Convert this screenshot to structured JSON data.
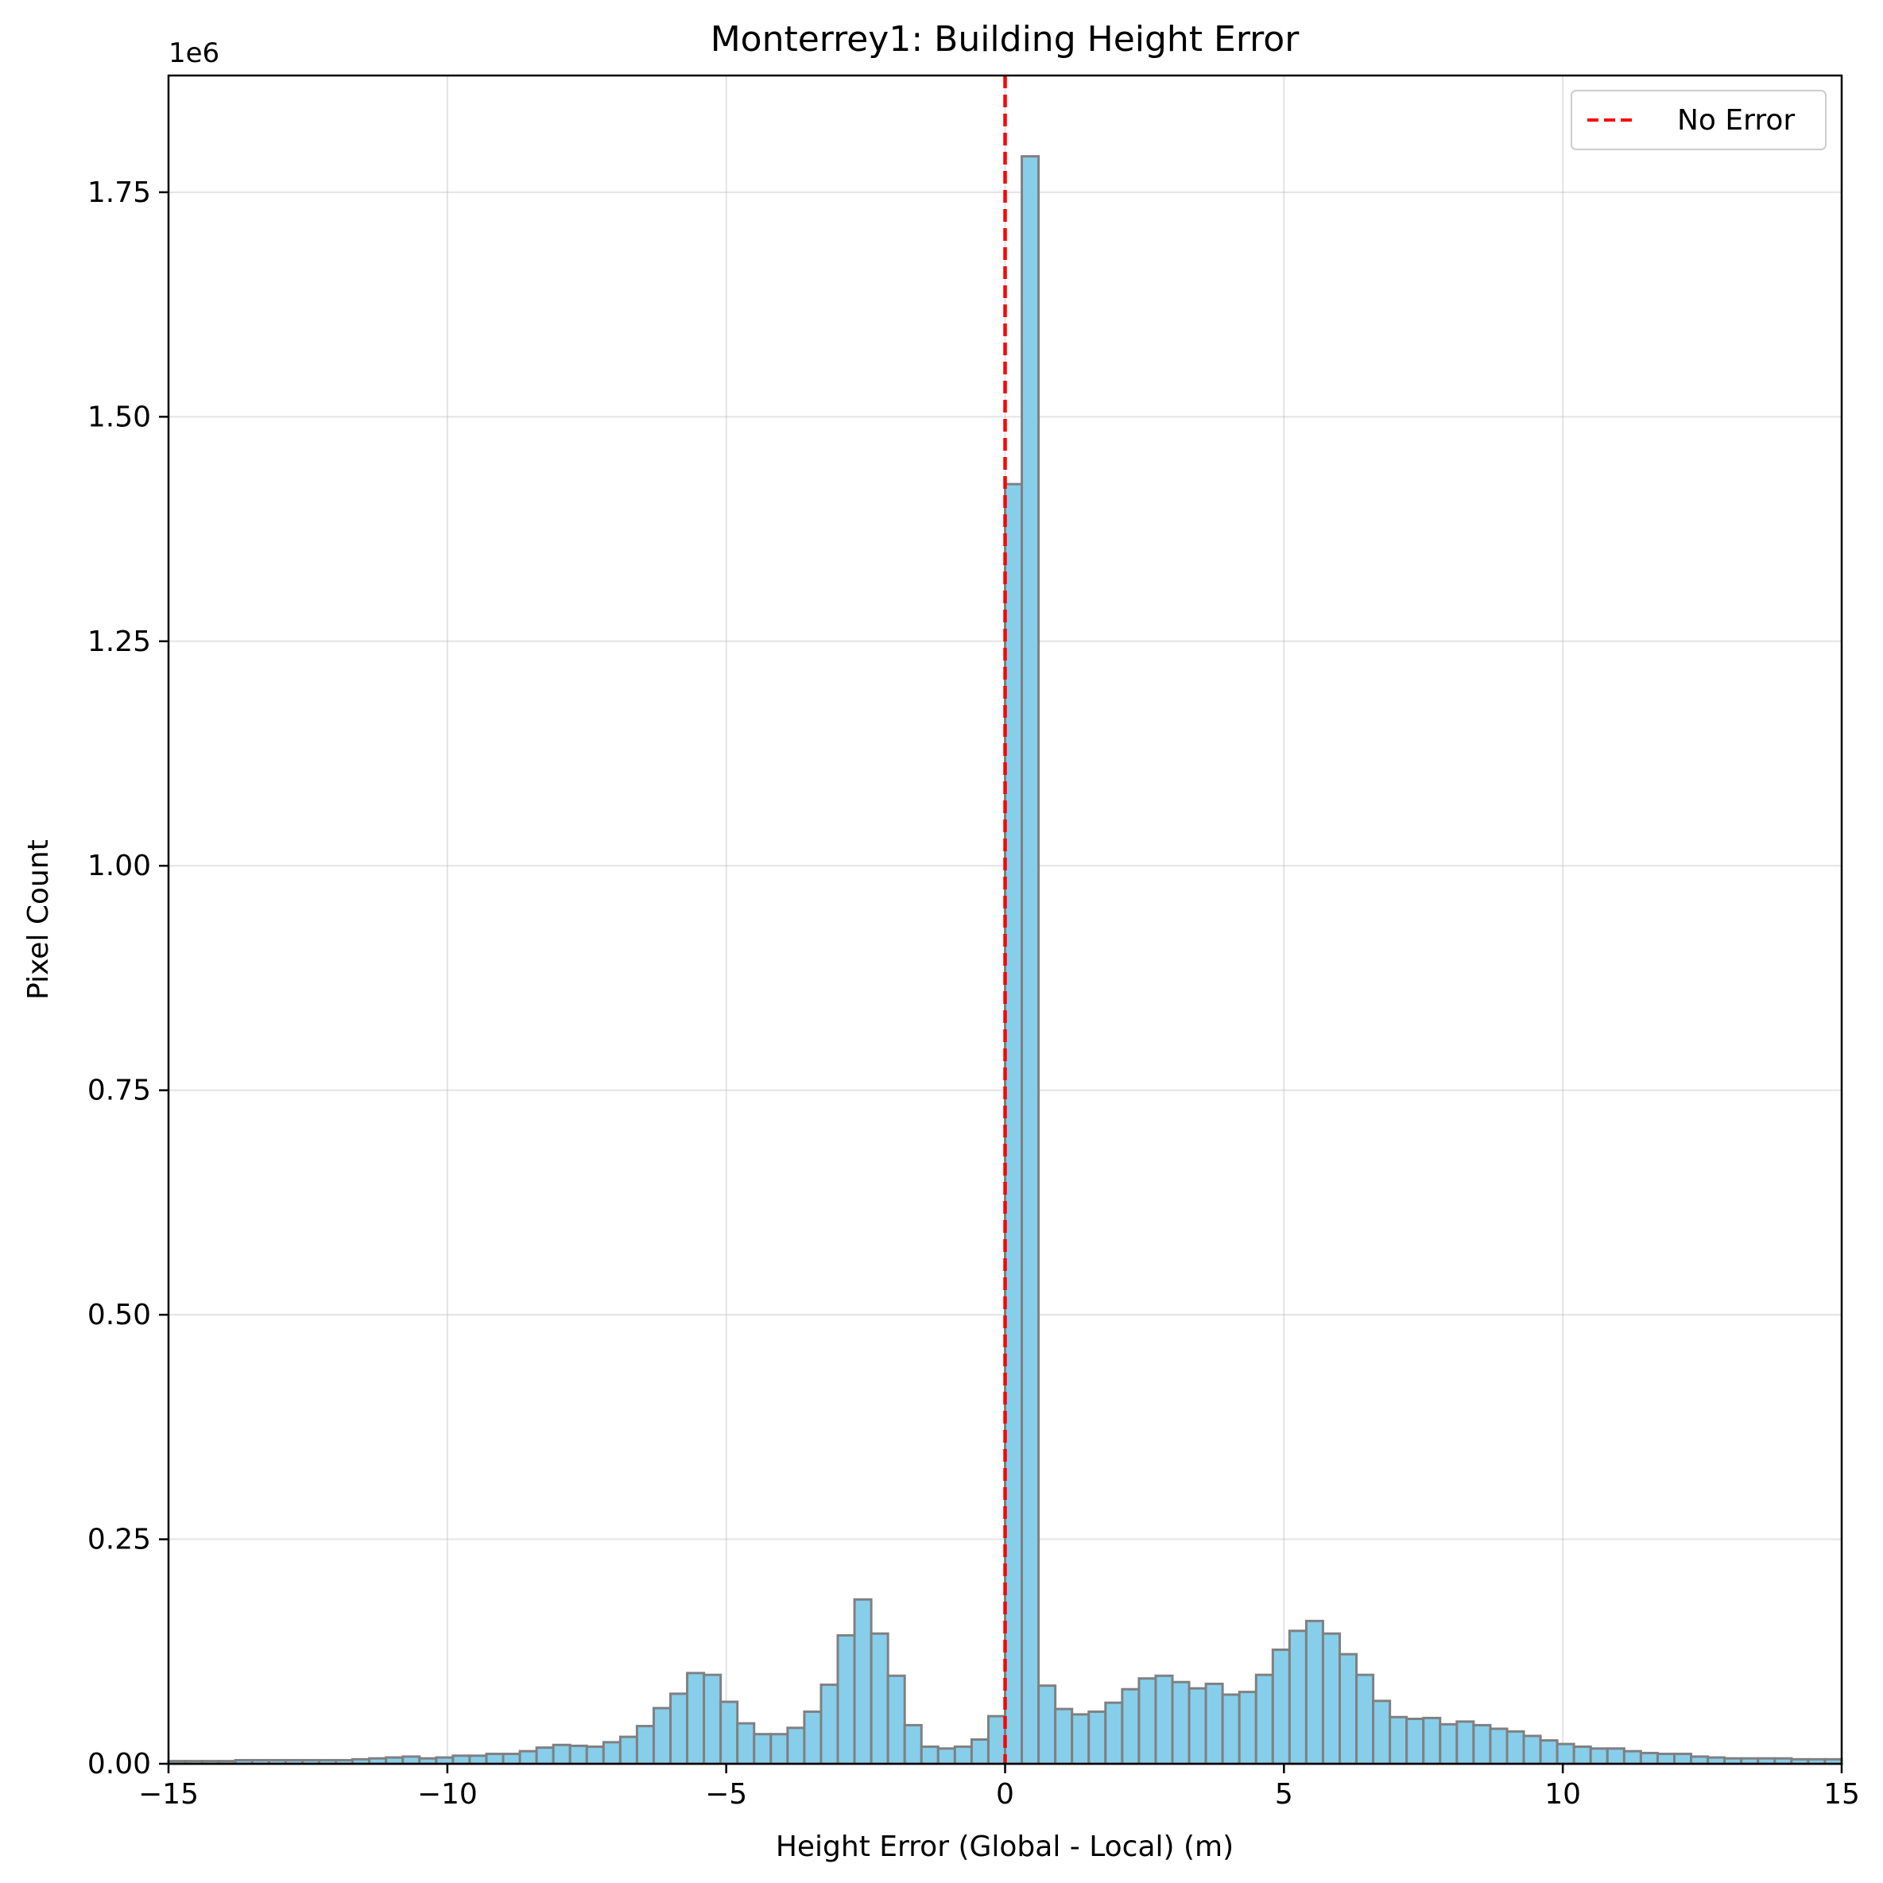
{
  "chart_data": {
    "type": "bar",
    "title": "Monterrey1: Building Height Error",
    "xlabel": "Height Error (Global - Local) (m)",
    "ylabel": "Pixel Count",
    "y_scale_label": "1e6",
    "xlim": [
      -15,
      15
    ],
    "ylim": [
      0,
      1880000
    ],
    "xticks": [
      -15,
      -10,
      -5,
      0,
      5,
      10,
      15
    ],
    "xtick_labels": [
      "−15",
      "−10",
      "−5",
      "0",
      "5",
      "10",
      "15"
    ],
    "yticks": [
      0,
      250000,
      500000,
      750000,
      1000000,
      1250000,
      1500000,
      1750000
    ],
    "ytick_labels": [
      "0.00",
      "0.25",
      "0.50",
      "0.75",
      "1.00",
      "1.25",
      "1.50",
      "1.75"
    ],
    "grid": true,
    "bin_width": 0.3,
    "bin_start": -15,
    "values": [
      3000,
      3000,
      3000,
      3000,
      4000,
      4000,
      4000,
      4000,
      4000,
      4000,
      4000,
      5000,
      6000,
      7000,
      8000,
      6000,
      7000,
      9000,
      9000,
      11000,
      11000,
      14000,
      18000,
      21000,
      20000,
      19000,
      24000,
      30000,
      42000,
      62000,
      78000,
      101000,
      99000,
      69000,
      45000,
      33000,
      33000,
      40000,
      58000,
      88000,
      143000,
      183000,
      145000,
      98000,
      43000,
      19000,
      17000,
      19000,
      27000,
      53000,
      1425000,
      1790000,
      87000,
      61000,
      55000,
      58000,
      68000,
      83000,
      95000,
      98000,
      91000,
      84000,
      89000,
      77000,
      80000,
      99000,
      127000,
      148000,
      159000,
      145000,
      122000,
      99000,
      70000,
      52000,
      50000,
      51000,
      44000,
      47000,
      43000,
      39000,
      36000,
      31000,
      26000,
      22000,
      19000,
      17000,
      17000,
      14000,
      12000,
      11000,
      11000,
      8000,
      7000,
      6000,
      6000,
      6000,
      6000,
      5000,
      5000,
      5000
    ],
    "bar_color": "#87ceeb",
    "bar_edge_color": "#808080",
    "reference_line": {
      "x": 0,
      "label": "No Error",
      "color": "#ff0000",
      "style": "dashed"
    },
    "legend": {
      "position": "top-right",
      "entries": [
        "No Error"
      ]
    }
  }
}
